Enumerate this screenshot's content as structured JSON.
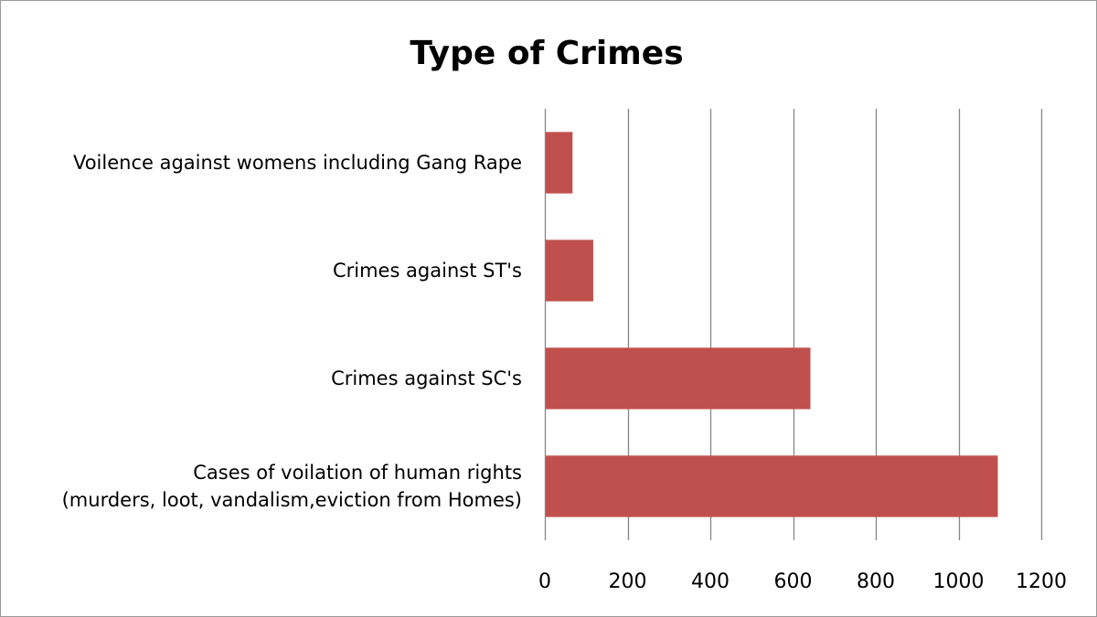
{
  "chart_data": {
    "type": "bar",
    "orientation": "horizontal",
    "title": "Type of Crimes",
    "xlabel": "",
    "ylabel": "",
    "categories": [
      [
        "Cases of voilation of human rights",
        "(murders, loot, vandalism,eviction from Homes)"
      ],
      [
        "Crimes against SC's"
      ],
      [
        "Crimes against ST's"
      ],
      [
        "Voilence against womens including Gang Rape"
      ]
    ],
    "values": [
      1095,
      642,
      117,
      67
    ],
    "xlim": [
      0,
      1200
    ],
    "x_ticks": [
      "0",
      "200",
      "400",
      "600",
      "800",
      "1000",
      "1200"
    ],
    "x_tick_values": [
      0,
      200,
      400,
      600,
      800,
      1000,
      1200
    ],
    "grid": "vertical",
    "legend": "none",
    "bar_color": "#C0504D",
    "grid_color": "#868686"
  }
}
